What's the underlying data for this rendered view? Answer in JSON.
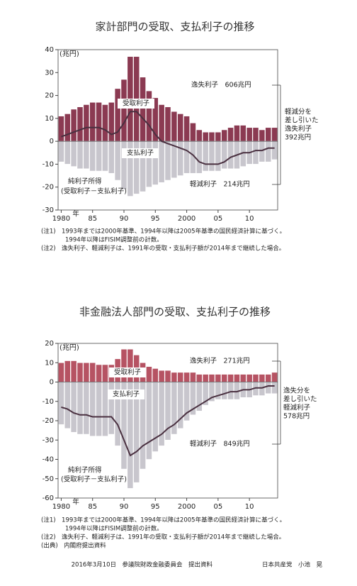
{
  "chart_data": [
    {
      "type": "bar",
      "title": "家計部門の受取、支払利子の推移",
      "y_unit": "(兆円)",
      "x_unit": "年",
      "x": [
        1980,
        1981,
        1982,
        1983,
        1984,
        1985,
        1986,
        1987,
        1988,
        1989,
        1990,
        1991,
        1992,
        1993,
        1994,
        1995,
        1996,
        1997,
        1998,
        1999,
        2000,
        2001,
        2002,
        2003,
        2004,
        2005,
        2006,
        2007,
        2008,
        2009,
        2010,
        2011,
        2012,
        2013,
        2014
      ],
      "xlim": [
        1979.5,
        2014.5
      ],
      "xticks": [
        1980,
        {
          "value": 1985,
          "label": "85"
        },
        {
          "value": 1990,
          "label": "90"
        },
        {
          "value": 1995,
          "label": "95"
        },
        2000,
        {
          "value": 2005,
          "label": "05"
        },
        {
          "value": 2010,
          "label": "10"
        }
      ],
      "ylim": [
        -30,
        40
      ],
      "yticks": [
        -30,
        -20,
        -10,
        0,
        10,
        20,
        30,
        40
      ],
      "series": [
        {
          "name": "受取利子",
          "color": "#8b3a52",
          "values": [
            11,
            12,
            14,
            15,
            16,
            17,
            17,
            16,
            17,
            23,
            27,
            37,
            37,
            28,
            22,
            19,
            16,
            15,
            13,
            12,
            11,
            8,
            5,
            4,
            4,
            4,
            5,
            6,
            7,
            7,
            6,
            6,
            5,
            6,
            6
          ]
        },
        {
          "name": "支払利子",
          "color": "#c8c6cd",
          "values": [
            -9,
            -10,
            -11,
            -12,
            -12,
            -13,
            -13,
            -13,
            -14,
            -17,
            -21,
            -24,
            -23,
            -22,
            -20,
            -19,
            -18,
            -17,
            -16,
            -15,
            -14,
            -14,
            -14,
            -13,
            -13,
            -13,
            -12,
            -12,
            -12,
            -11,
            -10,
            -10,
            -9,
            -9,
            -8
          ]
        },
        {
          "name": "純利子所得",
          "type": "line",
          "color": "#4a3040",
          "values": [
            2,
            3,
            4,
            5,
            6,
            6,
            6,
            5,
            3,
            4,
            8,
            13,
            13,
            10,
            7,
            3,
            0,
            -1,
            -2,
            -3,
            -4,
            -6,
            -9,
            -10,
            -10,
            -10,
            -9,
            -7,
            -6,
            -5,
            -5,
            -4,
            -4,
            -3,
            -3
          ]
        }
      ],
      "annotations": [
        "受取利子",
        "支払利子",
        "純利子所得",
        "(受取利子－支払利子)",
        "逸失利子　606兆円",
        "軽減利子　214兆円",
        "軽減分を",
        "差し引いた",
        "逸失利子",
        "392兆円"
      ],
      "notes": [
        "(注1)　1993年までは2000年基準、1994年以降は2005年基準の国民経済計算に基づく。",
        "1994年以降はFISIM調整前の計数。",
        "(注2)　逸失利子、軽減利子は、1991年の受取・支払利子額が2014年まで継続した場合。"
      ]
    },
    {
      "type": "bar",
      "title": "非金融法人部門の受取、支払利子の推移",
      "y_unit": "(兆円)",
      "x_unit": "年",
      "x": [
        1980,
        1981,
        1982,
        1983,
        1984,
        1985,
        1986,
        1987,
        1988,
        1989,
        1990,
        1991,
        1992,
        1993,
        1994,
        1995,
        1996,
        1997,
        1998,
        1999,
        2000,
        2001,
        2002,
        2003,
        2004,
        2005,
        2006,
        2007,
        2008,
        2009,
        2010,
        2011,
        2012,
        2013,
        2014
      ],
      "xlim": [
        1979.5,
        2014.5
      ],
      "xticks": [
        1980,
        {
          "value": 1985,
          "label": "85"
        },
        {
          "value": 1990,
          "label": "90"
        },
        {
          "value": 1995,
          "label": "95"
        },
        2000,
        {
          "value": 2005,
          "label": "05"
        },
        {
          "value": 2010,
          "label": "10"
        }
      ],
      "ylim": [
        -60,
        20
      ],
      "yticks": [
        -60,
        -50,
        -40,
        -30,
        -20,
        -10,
        0,
        10,
        20
      ],
      "series": [
        {
          "name": "受取利子",
          "color": "#b65363",
          "values": [
            10,
            11,
            11,
            10,
            10,
            10,
            9,
            9,
            9,
            12,
            17,
            17,
            14,
            10,
            8,
            7,
            6,
            6,
            5,
            5,
            5,
            5,
            4,
            4,
            4,
            4,
            4,
            4,
            4,
            4,
            4,
            4,
            4,
            4,
            5
          ]
        },
        {
          "name": "支払利子",
          "color": "#c8c6cd",
          "values": [
            -22,
            -24,
            -26,
            -27,
            -27,
            -28,
            -28,
            -28,
            -27,
            -33,
            -45,
            -55,
            -52,
            -45,
            -40,
            -36,
            -33,
            -30,
            -27,
            -24,
            -20,
            -17,
            -15,
            -12,
            -10,
            -9,
            -9,
            -9,
            -9,
            -8,
            -8,
            -7,
            -7,
            -6,
            -6
          ]
        },
        {
          "name": "純利子所得",
          "type": "line",
          "color": "#4a3040",
          "values": [
            -13,
            -14,
            -16,
            -17,
            -17,
            -18,
            -18,
            -18,
            -18,
            -22,
            -30,
            -38,
            -36,
            -33,
            -31,
            -29,
            -27,
            -24,
            -22,
            -19,
            -16,
            -14,
            -12,
            -10,
            -8,
            -7,
            -6,
            -5,
            -5,
            -4,
            -4,
            -3,
            -3,
            -2,
            -2
          ]
        }
      ],
      "annotations": [
        "受取利子",
        "支払利子",
        "純利子所得",
        "(受取利子－支払利子)",
        "逸失利子　271兆円",
        "軽減利子　849兆円",
        "逸失分を",
        "差し引いた",
        "軽減利子",
        "578兆円"
      ],
      "notes": [
        "(注1)　1993年までは2000年基準、1994年以降は2005年基準の国民経済計算に基づく。",
        "1994年以降はFISIM調整前の計数。",
        "(注2)　逸失利子、軽減利子は、1991年の受取・支払利子額が2014年まで継続した場合。",
        "(出典)　内閣府提出資料"
      ]
    }
  ],
  "footer": {
    "date": "2016年3月10日　参議院財政金融委員会　提出資料",
    "author": "日本共産党　小池　晃"
  }
}
